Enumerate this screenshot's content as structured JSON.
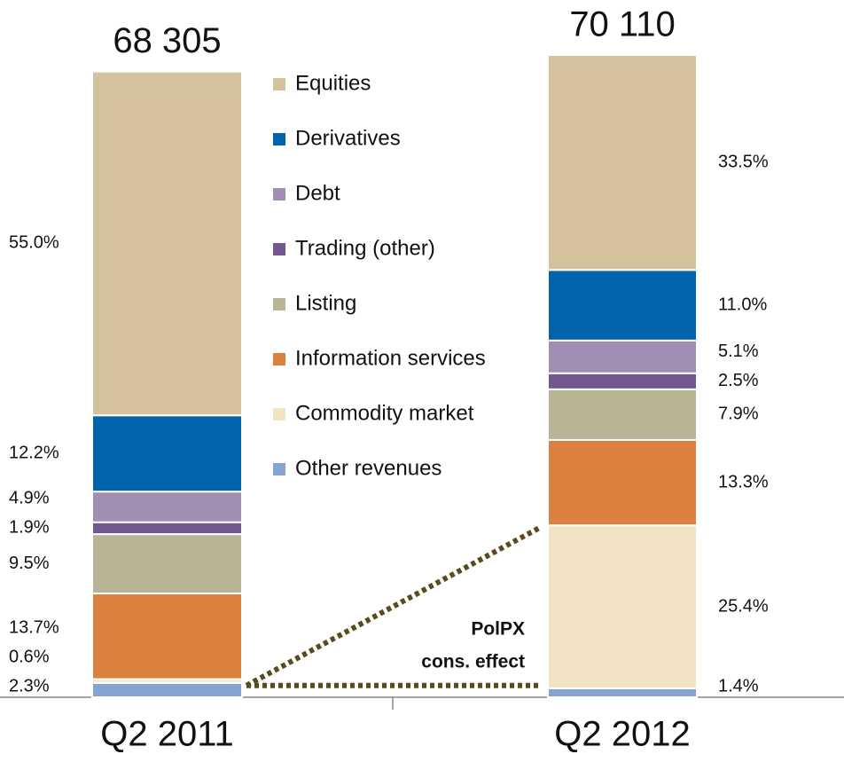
{
  "chart_data": {
    "type": "stacked-bar",
    "categories": [
      "Q2 2011",
      "Q2 2012"
    ],
    "totals": [
      {
        "value": 68305,
        "label": "68 305"
      },
      {
        "value": 70110,
        "label": "70 110"
      }
    ],
    "series": [
      {
        "name": "Equities",
        "color": "#d4c29c",
        "values": [
          55.0,
          33.5
        ],
        "value_labels": [
          "55.0%",
          "33.5%"
        ]
      },
      {
        "name": "Derivatives",
        "color": "#0063ab",
        "values": [
          12.2,
          11.0
        ],
        "value_labels": [
          "12.2%",
          "11.0%"
        ]
      },
      {
        "name": "Debt",
        "color": "#a08fb2",
        "values": [
          4.9,
          5.1
        ],
        "value_labels": [
          "4.9%",
          "5.1%"
        ]
      },
      {
        "name": "Trading (other)",
        "color": "#725790",
        "values": [
          1.9,
          2.5
        ],
        "value_labels": [
          "1.9%",
          "2.5%"
        ]
      },
      {
        "name": "Listing",
        "color": "#b8b496",
        "values": [
          9.5,
          7.9
        ],
        "value_labels": [
          "9.5%",
          "7.9%"
        ]
      },
      {
        "name": "Information services",
        "color": "#dc803f",
        "values": [
          13.7,
          13.3
        ],
        "value_labels": [
          "13.7%",
          "13.3%"
        ]
      },
      {
        "name": "Commodity market",
        "color": "#f3e3c5",
        "values": [
          0.6,
          25.4
        ],
        "value_labels": [
          "0.6%",
          "25.4%"
        ]
      },
      {
        "name": "Other revenues",
        "color": "#87a3d2",
        "values": [
          2.3,
          1.4
        ],
        "value_labels": [
          "2.3%",
          "1.4%"
        ]
      }
    ],
    "annotation": [
      "PolPX",
      "cons. effect"
    ]
  }
}
